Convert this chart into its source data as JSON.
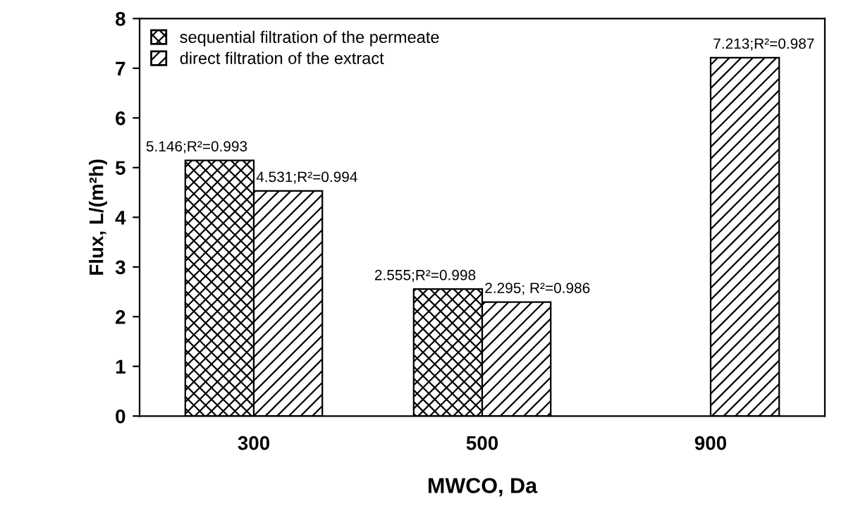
{
  "chart_data": {
    "type": "bar",
    "xlabel": "MWCO, Da",
    "ylabel": "Flux, L/(m²h)",
    "categories": [
      "300",
      "500",
      "900"
    ],
    "series": [
      {
        "name": "sequential filtration of the permeate",
        "color": "#000000",
        "values": [
          5.146,
          2.555,
          null
        ],
        "value_labels": [
          "5.146;R²=0.993",
          "2.555;R²=0.998",
          null
        ]
      },
      {
        "name": "direct filtration of the extract",
        "color": "#000000",
        "values": [
          4.531,
          2.295,
          7.213
        ],
        "value_labels": [
          "4.531;R²=0.994",
          "2.295; R²=0.986",
          "7.213;R²=0.987"
        ]
      }
    ],
    "ylim": [
      0,
      8
    ],
    "yticks": [
      0,
      1,
      2,
      3,
      4,
      5,
      6,
      7,
      8
    ],
    "grid": false,
    "legend": "top left"
  }
}
